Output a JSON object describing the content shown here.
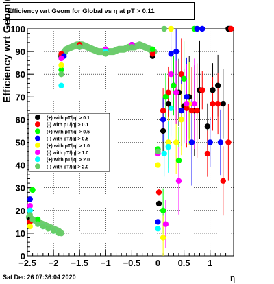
{
  "title": "Efficiency wrt Geom for Global vs   η at pT > 0.11",
  "timestamp": "Sat Dec 26 07:36:04 2020",
  "chart_data": {
    "type": "scatter",
    "xlabel": "η",
    "ylabel": "Efficiency wrt Geom (%)",
    "xlim": [
      -2.5,
      1.45
    ],
    "ylim": [
      0,
      100
    ],
    "x_ticks": [
      -2.5,
      -2,
      -1.5,
      -1,
      -0.5,
      0,
      0.5,
      1
    ],
    "x_tick_labels": [
      "−2.5",
      "−2",
      "−1.5",
      "−1",
      "−0.5",
      "0",
      "0.5",
      "1"
    ],
    "y_ticks": [
      0,
      10,
      20,
      30,
      40,
      50,
      60,
      70,
      80,
      90,
      100
    ],
    "y_tick_labels": [
      "0",
      "10",
      "20",
      "30",
      "40",
      "50",
      "60",
      "70",
      "80",
      "90",
      "100"
    ],
    "grid": true,
    "legend_position": "center-left",
    "series": [
      {
        "name": "(+) with pT/|q| > 0.1",
        "color": "#000000",
        "points": [
          [
            -2.45,
            16
          ],
          [
            -1.85,
            88
          ],
          [
            -1.5,
            92
          ],
          [
            -1,
            90
          ],
          [
            -0.5,
            92
          ],
          [
            -0.1,
            88
          ],
          [
            0.02,
            23
          ],
          [
            0.1,
            55
          ],
          [
            0.2,
            67
          ],
          [
            0.3,
            75
          ],
          [
            0.4,
            72
          ],
          [
            0.5,
            66
          ],
          [
            0.6,
            70
          ],
          [
            0.7,
            64
          ],
          [
            0.8,
            73
          ],
          [
            0.95,
            57
          ],
          [
            1.05,
            73
          ],
          [
            1.15,
            75
          ],
          [
            1.25,
            67
          ],
          [
            1.35,
            100
          ],
          [
            1.38,
            100
          ]
        ]
      },
      {
        "name": "(-) with pT/|q| > 0.1",
        "color": "#ff0000",
        "points": [
          [
            -2.45,
            15
          ],
          [
            -1.85,
            89
          ],
          [
            -1.5,
            93
          ],
          [
            -1,
            91
          ],
          [
            -0.5,
            93
          ],
          [
            -0.1,
            89
          ],
          [
            0.02,
            28
          ],
          [
            0.1,
            64
          ],
          [
            0.2,
            72
          ],
          [
            0.35,
            72
          ],
          [
            0.45,
            80
          ],
          [
            0.55,
            65
          ],
          [
            0.65,
            64
          ],
          [
            0.75,
            64
          ],
          [
            0.85,
            73
          ],
          [
            0.95,
            45
          ],
          [
            1.05,
            67
          ],
          [
            1.15,
            67
          ],
          [
            1.25,
            33
          ],
          [
            1.35,
            50
          ],
          [
            1.4,
            100
          ]
        ]
      },
      {
        "name": "(+) with pT/|q| > 0.5",
        "color": "#00ff00",
        "points": [
          [
            -2.4,
            29
          ],
          [
            -2.3,
            16
          ],
          [
            -2.1,
            12
          ],
          [
            -1.85,
            82
          ],
          [
            -1.5,
            92
          ],
          [
            -1,
            90
          ],
          [
            -0.5,
            92
          ],
          [
            -0.1,
            91
          ],
          [
            0.0,
            47
          ],
          [
            0.1,
            20
          ],
          [
            0.15,
            70
          ],
          [
            0.3,
            75
          ],
          [
            0.4,
            42
          ],
          [
            0.5,
            78
          ],
          [
            0.6,
            67
          ],
          [
            0.7,
            100
          ]
        ]
      },
      {
        "name": "(-) with pT/|q| > 0.5",
        "color": "#0000ff",
        "points": [
          [
            -2.45,
            25
          ],
          [
            -1.8,
            88
          ],
          [
            -1.5,
            92
          ],
          [
            -1,
            91
          ],
          [
            -0.5,
            93
          ],
          [
            0.0,
            15
          ],
          [
            0.1,
            60
          ],
          [
            0.25,
            89
          ],
          [
            0.35,
            90
          ],
          [
            0.45,
            64
          ],
          [
            0.55,
            70
          ],
          [
            0.65,
            50
          ],
          [
            0.75,
            100
          ],
          [
            0.85,
            100
          ],
          [
            1.0,
            50
          ],
          [
            1.2,
            50
          ]
        ]
      },
      {
        "name": "(+) with pT/|q| > 1.0",
        "color": "#ffff00",
        "points": [
          [
            -2.45,
            13
          ],
          [
            -1.85,
            84
          ],
          [
            -1.5,
            92
          ],
          [
            -1,
            90
          ],
          [
            -0.5,
            92
          ],
          [
            0.0,
            40
          ],
          [
            0.1,
            8
          ],
          [
            0.2,
            50
          ],
          [
            0.25,
            100
          ],
          [
            0.35,
            50
          ],
          [
            0.45,
            60
          ],
          [
            0.6,
            67
          ]
        ]
      },
      {
        "name": "(-) with pT/|q| > 1.0",
        "color": "#ff00ff",
        "points": [
          [
            -2.45,
            22
          ],
          [
            -1.85,
            87
          ],
          [
            -1.5,
            92
          ],
          [
            -1,
            91
          ],
          [
            -0.5,
            93
          ],
          [
            0.0,
            45
          ],
          [
            0.15,
            14
          ],
          [
            0.25,
            80
          ],
          [
            0.35,
            72
          ],
          [
            0.4,
            33
          ],
          [
            0.55,
            67
          ],
          [
            0.7,
            67
          ]
        ]
      },
      {
        "name": "(+) with pT/|q| > 2.0",
        "color": "#00ffff",
        "points": [
          [
            -2.45,
            20
          ],
          [
            -2.2,
            13
          ],
          [
            -2.0,
            11
          ],
          [
            -1.85,
            75
          ],
          [
            -1.5,
            92
          ],
          [
            -1,
            90
          ],
          [
            -0.5,
            92
          ],
          [
            0.0,
            12
          ],
          [
            0.12,
            45
          ],
          [
            0.2,
            48
          ],
          [
            0.25,
            65
          ]
        ]
      },
      {
        "name": "(-) with pT/|q| > 2.0",
        "color": "#66cc66",
        "points": [
          [
            -2.45,
            18
          ],
          [
            -2.4,
            16
          ],
          [
            -2.3,
            14
          ],
          [
            -2.2,
            13
          ],
          [
            -2.1,
            12
          ],
          [
            -2.0,
            11
          ],
          [
            -1.9,
            10
          ],
          [
            -1.85,
            80
          ],
          [
            -1.5,
            92
          ],
          [
            -1.0,
            89
          ],
          [
            -0.5,
            92
          ],
          [
            0.0,
            46
          ],
          [
            0.12,
            100
          ]
        ]
      }
    ],
    "band": {
      "color": "#6dcc6d",
      "left_x": [
        -2.47,
        -2.4,
        -2.3,
        -2.2,
        -2.1,
        -2.0,
        -1.9,
        -1.85
      ],
      "left_y": [
        17,
        16,
        15,
        14,
        13,
        12,
        11,
        10
      ],
      "plateau_x": [
        -1.85,
        -1.75,
        -1.65,
        -1.55,
        -1.45,
        -1.35,
        -1.25,
        -1.15,
        -1.05,
        -0.95,
        -0.85,
        -0.75,
        -0.65,
        -0.55,
        -0.45,
        -0.35,
        -0.25,
        -0.15,
        -0.08
      ],
      "plateau_y": [
        88,
        91,
        92,
        93,
        93,
        92,
        91,
        90,
        90,
        90,
        90,
        91,
        91,
        92,
        92,
        93,
        92,
        91,
        90
      ]
    }
  }
}
